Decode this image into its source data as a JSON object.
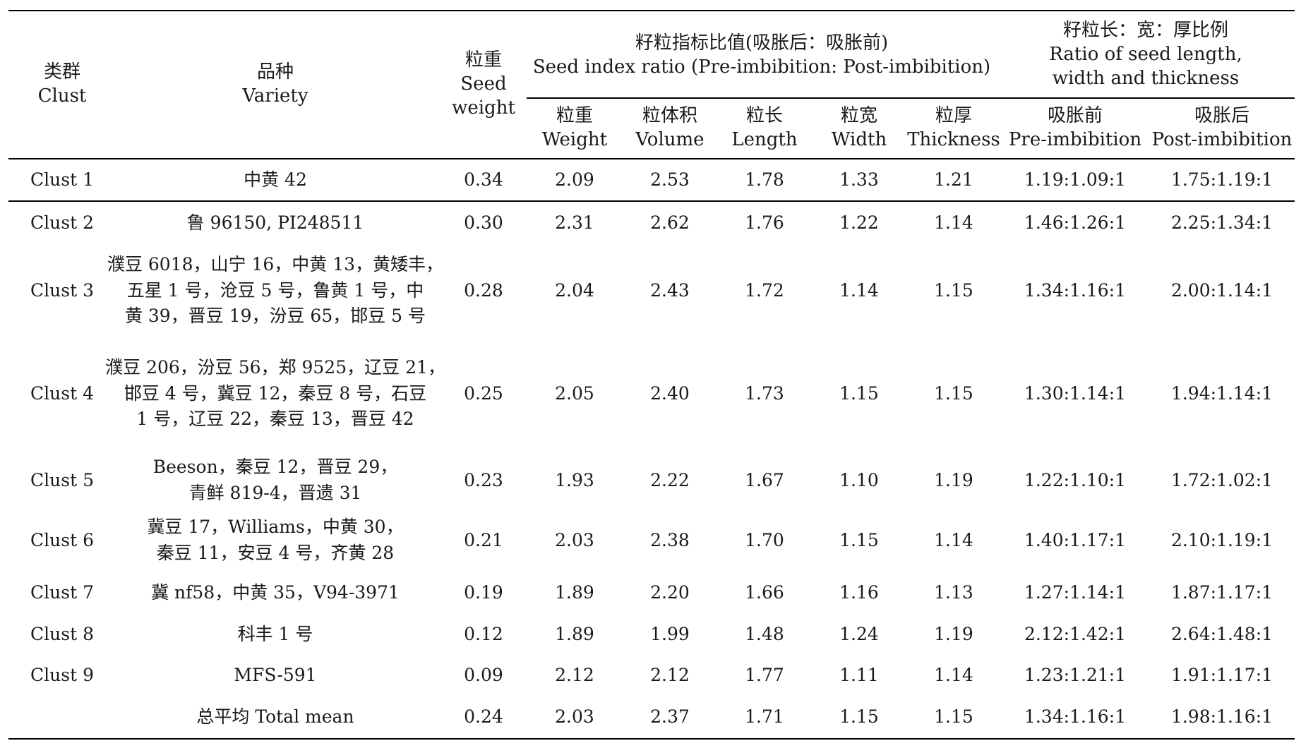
{
  "header": {
    "clust_zh": "类群",
    "clust_en": "Clust",
    "variety_zh": "品种",
    "variety_en": "Variety",
    "seed_weight_zh": "粒重",
    "seed_weight_en1": "Seed",
    "seed_weight_en2": "weight",
    "ratio_group_zh": "籽粒指标比值(吸胀后：吸胀前)",
    "ratio_group_en": "Seed index ratio (Pre-imbibition: Post-imbibition)",
    "lwt_group_zh": "籽粒长：宽：厚比例",
    "lwt_group_en1": "Ratio of seed length,",
    "lwt_group_en2": "width and thickness",
    "weight_zh": "粒重",
    "weight_en": "Weight",
    "volume_zh": "粒体积",
    "volume_en": "Volume",
    "length_zh": "粒长",
    "length_en": "Length",
    "width_zh": "粒宽",
    "width_en": "Width",
    "thickness_zh": "粒厚",
    "thickness_en": "Thickness",
    "pre_zh": "吸胀前",
    "pre_en": "Pre-imbibition",
    "post_zh": "吸胀后",
    "post_en": "Post-imbibition"
  },
  "rows": [
    {
      "clust": "Clust 1",
      "variety": [
        "中黄 42"
      ],
      "seed_weight": "0.34",
      "weight": "2.09",
      "volume": "2.53",
      "length": "1.78",
      "width": "1.33",
      "thickness": "1.21",
      "pre": "1.19:1.09:1",
      "post": "1.75:1.19:1"
    },
    {
      "clust": "Clust 2",
      "variety": [
        "鲁 96150, PI248511"
      ],
      "seed_weight": "0.30",
      "weight": "2.31",
      "volume": "2.62",
      "length": "1.76",
      "width": "1.22",
      "thickness": "1.14",
      "pre": "1.46:1.26:1",
      "post": "2.25:1.34:1"
    },
    {
      "clust": "Clust 3",
      "variety": [
        "濮豆 6018，山宁 16，中黄 13，黄矮丰，",
        "五星 1 号，沧豆 5 号，鲁黄 1 号，中",
        "黄 39，晋豆 19，汾豆 65，邯豆 5 号"
      ],
      "seed_weight": "0.28",
      "weight": "2.04",
      "volume": "2.43",
      "length": "1.72",
      "width": "1.14",
      "thickness": "1.15",
      "pre": "1.34:1.16:1",
      "post": "2.00:1.14:1"
    },
    {
      "clust": "Clust 4",
      "variety": [
        "濮豆 206，汾豆 56，郑 9525，辽豆 21，",
        "邯豆 4 号，冀豆 12，秦豆 8 号，石豆",
        "1 号，辽豆 22，秦豆 13，晋豆 42"
      ],
      "seed_weight": "0.25",
      "weight": "2.05",
      "volume": "2.40",
      "length": "1.73",
      "width": "1.15",
      "thickness": "1.15",
      "pre": "1.30:1.14:1",
      "post": "1.94:1.14:1"
    },
    {
      "clust": "Clust 5",
      "variety": [
        "Beeson，秦豆 12，晋豆 29，",
        "青鲜 819-4，晋遗 31"
      ],
      "seed_weight": "0.23",
      "weight": "1.93",
      "volume": "2.22",
      "length": "1.67",
      "width": "1.10",
      "thickness": "1.19",
      "pre": "1.22:1.10:1",
      "post": "1.72:1.02:1"
    },
    {
      "clust": "Clust 6",
      "variety": [
        "冀豆 17，Williams，中黄 30，",
        "秦豆 11，安豆 4 号，齐黄 28"
      ],
      "seed_weight": "0.21",
      "weight": "2.03",
      "volume": "2.38",
      "length": "1.70",
      "width": "1.15",
      "thickness": "1.14",
      "pre": "1.40:1.17:1",
      "post": "2.10:1.19:1"
    },
    {
      "clust": "Clust 7",
      "variety": [
        "冀 nf58，中黄 35，V94-3971"
      ],
      "seed_weight": "0.19",
      "weight": "1.89",
      "volume": "2.20",
      "length": "1.66",
      "width": "1.16",
      "thickness": "1.13",
      "pre": "1.27:1.14:1",
      "post": "1.87:1.17:1"
    },
    {
      "clust": "Clust 8",
      "variety": [
        "科丰 1 号"
      ],
      "seed_weight": "0.12",
      "weight": "1.89",
      "volume": "1.99",
      "length": "1.48",
      "width": "1.24",
      "thickness": "1.19",
      "pre": "2.12:1.42:1",
      "post": "2.64:1.48:1"
    },
    {
      "clust": "Clust 9",
      "variety": [
        "MFS-591"
      ],
      "seed_weight": "0.09",
      "weight": "2.12",
      "volume": "2.12",
      "length": "1.77",
      "width": "1.11",
      "thickness": "1.14",
      "pre": "1.23:1.21:1",
      "post": "1.91:1.17:1"
    }
  ],
  "total": {
    "label": "总平均 Total mean",
    "seed_weight": "0.24",
    "weight": "2.03",
    "volume": "2.37",
    "length": "1.71",
    "width": "1.15",
    "thickness": "1.15",
    "pre": "1.34:1.16:1",
    "post": "1.98:1.16:1"
  }
}
